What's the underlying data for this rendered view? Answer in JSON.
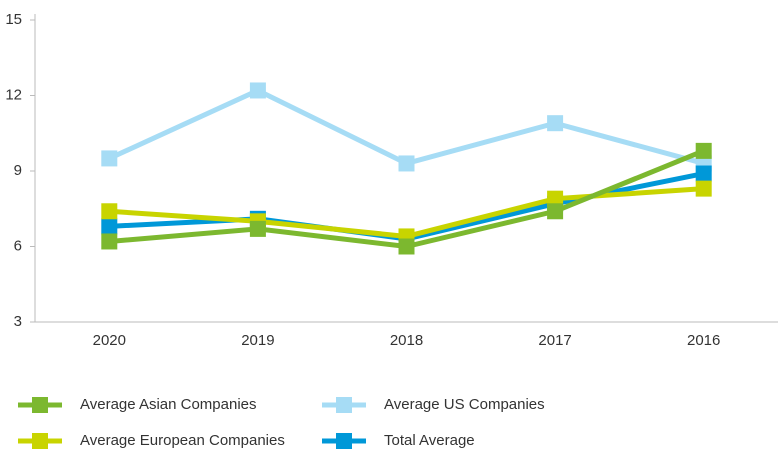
{
  "chart_data": {
    "type": "line",
    "categories": [
      "2020",
      "2019",
      "2018",
      "2017",
      "2016"
    ],
    "series": [
      {
        "name": "Average US Companies",
        "color": "#a6dcf5",
        "values": [
          9.5,
          12.2,
          9.3,
          10.9,
          9.3
        ]
      },
      {
        "name": "Total Average",
        "color": "#0098d8",
        "values": [
          6.8,
          7.1,
          6.3,
          7.7,
          8.9
        ]
      },
      {
        "name": "Average European Companies",
        "color": "#c8d400",
        "values": [
          7.4,
          7.0,
          6.4,
          7.9,
          8.3
        ]
      },
      {
        "name": "Average Asian Companies",
        "color": "#7cb82f",
        "values": [
          6.2,
          6.7,
          6.0,
          7.4,
          9.8
        ]
      }
    ],
    "ylim": [
      3,
      15
    ],
    "yticks": [
      3,
      6,
      9,
      12,
      15
    ],
    "legend_order": [
      3,
      0,
      2,
      1
    ]
  }
}
